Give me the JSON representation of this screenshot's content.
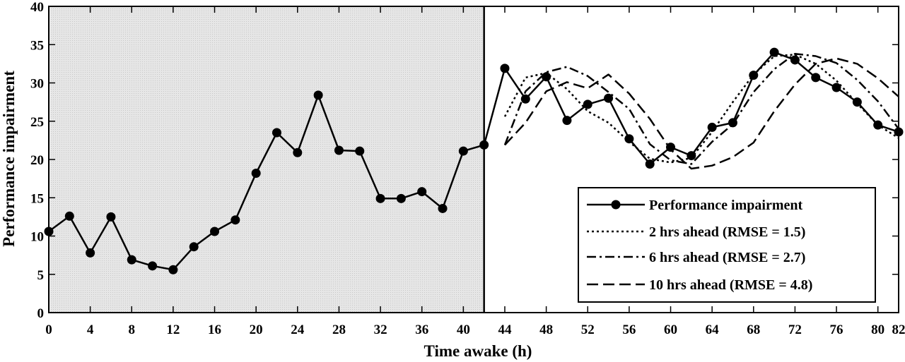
{
  "chart_data": {
    "type": "line",
    "xlabel": "Time awake (h)",
    "ylabel": "Performance impairment",
    "xlim": [
      0,
      82
    ],
    "ylim": [
      0,
      40
    ],
    "shaded_region_x": [
      0,
      42
    ],
    "divider_x": 42,
    "x_ticks": [
      0,
      4,
      8,
      12,
      16,
      20,
      24,
      28,
      32,
      36,
      40,
      44,
      48,
      52,
      56,
      60,
      64,
      68,
      72,
      76,
      80,
      82
    ],
    "y_ticks": [
      0,
      5,
      10,
      15,
      20,
      25,
      30,
      35,
      40
    ],
    "legend_position": "bottom-right",
    "series": [
      {
        "name": "Performance impairment",
        "style": "solid-marker",
        "x": [
          0,
          2,
          4,
          6,
          8,
          10,
          12,
          14,
          16,
          18,
          20,
          22,
          24,
          26,
          28,
          30,
          32,
          34,
          36,
          38,
          40,
          42,
          44,
          46,
          48,
          50,
          52,
          54,
          56,
          58,
          60,
          62,
          64,
          66,
          68,
          70,
          72,
          74,
          76,
          78,
          80,
          82
        ],
        "values": [
          10.6,
          12.6,
          7.8,
          12.5,
          6.9,
          6.1,
          5.6,
          8.6,
          10.6,
          12.1,
          18.2,
          23.5,
          20.9,
          28.4,
          21.2,
          21.1,
          14.9,
          14.9,
          15.8,
          13.6,
          21.1,
          21.9,
          31.9,
          27.9,
          30.8,
          25.1,
          27.2,
          28.0,
          22.7,
          19.4,
          21.6,
          20.5,
          24.2,
          24.8,
          31.0,
          34.0,
          33.0,
          30.7,
          29.4,
          27.5,
          24.5,
          23.6
        ]
      },
      {
        "name": "2 hrs ahead (RMSE = 1.5)",
        "style": "dotted",
        "x": [
          44,
          46,
          48,
          50,
          52,
          54,
          56,
          58,
          60,
          62,
          64,
          66,
          68,
          70,
          72,
          74,
          76,
          78,
          80,
          82
        ],
        "values": [
          25.6,
          30.7,
          31.3,
          29.2,
          26.3,
          24.8,
          22.3,
          20.1,
          19.6,
          20.2,
          23.6,
          27.5,
          31.1,
          33.5,
          33.7,
          32.5,
          30.3,
          27.3,
          24.5,
          22.8
        ]
      },
      {
        "name": "6 hrs ahead (RMSE = 2.7)",
        "style": "dashdot",
        "x": [
          44,
          46,
          48,
          50,
          52,
          54,
          56,
          58,
          60,
          62,
          64,
          66,
          68,
          70,
          72,
          74,
          76,
          78,
          80,
          82
        ],
        "values": [
          21.9,
          28.9,
          31.4,
          32.1,
          30.9,
          28.8,
          26.6,
          22.0,
          19.9,
          19.4,
          22.3,
          24.6,
          28.8,
          31.8,
          33.8,
          33.5,
          32.6,
          30.4,
          27.6,
          24.0
        ]
      },
      {
        "name": "10 hrs ahead (RMSE = 4.8)",
        "style": "dashed",
        "x": [
          44,
          46,
          48,
          50,
          52,
          54,
          56,
          58,
          60,
          62,
          64,
          66,
          68,
          70,
          72,
          74,
          76,
          78,
          80,
          82
        ],
        "values": [
          21.9,
          24.8,
          28.9,
          30.1,
          29.3,
          31.1,
          28.6,
          25.3,
          21.3,
          18.8,
          19.2,
          20.3,
          22.2,
          26.3,
          29.8,
          32.5,
          33.2,
          32.5,
          30.6,
          28.2
        ]
      }
    ]
  }
}
